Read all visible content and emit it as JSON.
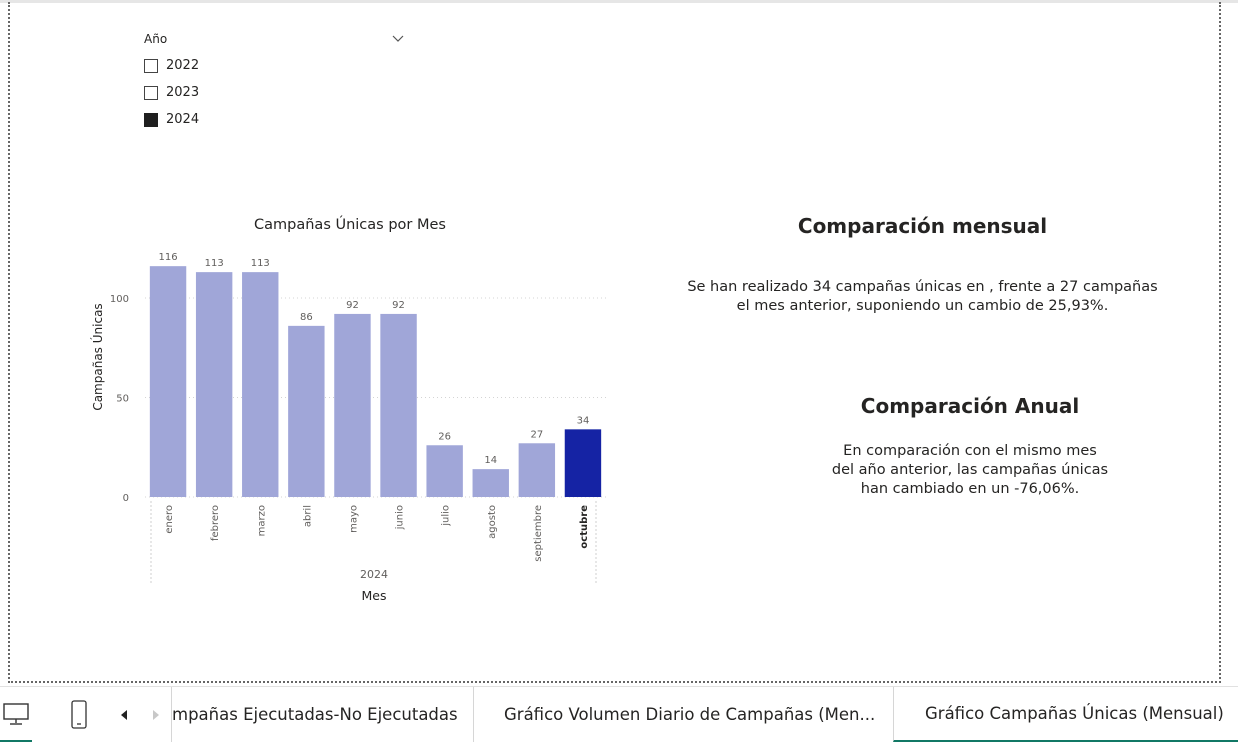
{
  "slicer": {
    "title": "Año",
    "options": [
      {
        "label": "2022",
        "checked": false
      },
      {
        "label": "2023",
        "checked": false
      },
      {
        "label": "2024",
        "checked": true
      }
    ]
  },
  "chart_data": {
    "type": "bar",
    "title": "Campañas Únicas por Mes",
    "xlabel": "Mes",
    "ylabel": "Campañas Únicas",
    "x_group_label": "2024",
    "categories": [
      "enero",
      "febrero",
      "marzo",
      "abril",
      "mayo",
      "junio",
      "julio",
      "agosto",
      "septiembre",
      "octubre"
    ],
    "values": [
      116,
      113,
      113,
      86,
      92,
      92,
      26,
      14,
      27,
      34
    ],
    "highlighted": "octubre",
    "yticks": [
      0,
      50,
      100
    ],
    "ylim": [
      0,
      125
    ],
    "grid": true,
    "colors": {
      "bar": "#a0a6d8",
      "highlight": "#1523a4"
    }
  },
  "monthly": {
    "title": "Comparación mensual",
    "line1": "Se han realizado 34 campañas únicas en , frente a 27 campañas",
    "line2": "el mes anterior, suponiendo un cambio de 25,93%."
  },
  "annual": {
    "title": "Comparación Anual",
    "line1": "En comparación con el mismo mes",
    "line2": "del año anterior, las campañas únicas",
    "line3": "han cambiado en un -76,06%."
  },
  "tabs": [
    {
      "label": "mpañas Ejecutadas-No Ejecutadas",
      "active": false
    },
    {
      "label": "Gráfico Volumen Diario de Campañas (Men...",
      "active": false
    },
    {
      "label": "Gráfico Campañas Únicas (Mensual)",
      "active": true
    }
  ],
  "icons": [
    "desktop-icon",
    "phone-icon",
    "chevron-left-icon",
    "chevron-right-icon",
    "chevron-down-icon"
  ]
}
